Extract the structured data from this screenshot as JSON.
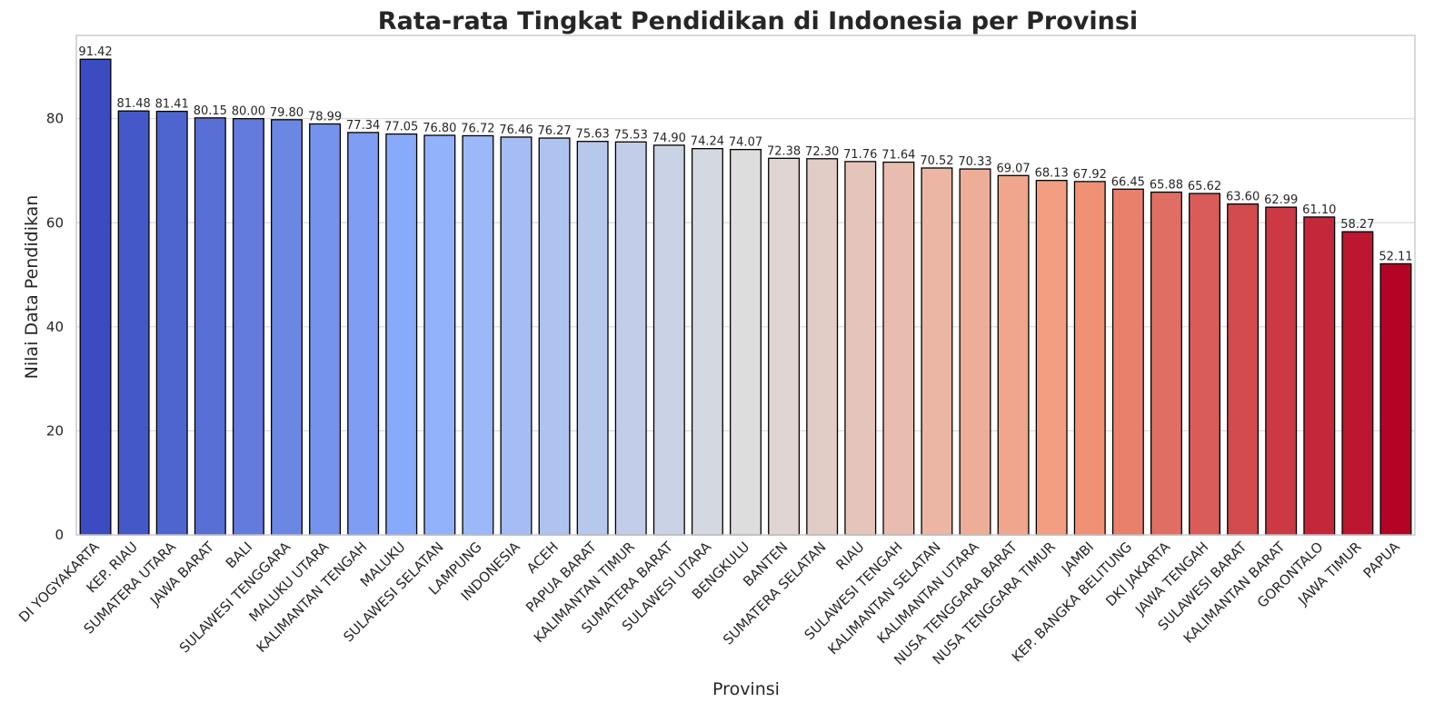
{
  "chart_data": {
    "type": "bar",
    "title": "Rata-rata Tingkat Pendidikan di Indonesia per Provinsi",
    "xlabel": "Provinsi",
    "ylabel": "Nilai Data Pendidikan",
    "ylim": [
      0,
      96
    ],
    "yticks": [
      0,
      20,
      40,
      60,
      80
    ],
    "grid": "horizontal",
    "palette": "coolwarm",
    "bar_edge_color": "#000000",
    "categories": [
      "DI YOGYAKARTA",
      "KEP. RIAU",
      "SUMATERA UTARA",
      "JAWA BARAT",
      "BALI",
      "SULAWESI TENGGARA",
      "MALUKU UTARA",
      "KALIMANTAN TENGAH",
      "MALUKU",
      "SULAWESI SELATAN",
      "LAMPUNG",
      "INDONESIA",
      "ACEH",
      "PAPUA BARAT",
      "KALIMANTAN TIMUR",
      "SUMATERA BARAT",
      "SULAWESI UTARA",
      "BENGKULU",
      "BANTEN",
      "SUMATERA SELATAN",
      "RIAU",
      "SULAWESI TENGAH",
      "KALIMANTAN SELATAN",
      "KALIMANTAN UTARA",
      "NUSA TENGGARA BARAT",
      "NUSA TENGGARA TIMUR",
      "JAMBI",
      "KEP. BANGKA BELITUNG",
      "DKI JAKARTA",
      "JAWA TENGAH",
      "SULAWESI BARAT",
      "KALIMANTAN BARAT",
      "GORONTALO",
      "JAWA TIMUR",
      "PAPUA"
    ],
    "values": [
      91.42,
      81.48,
      81.41,
      80.15,
      80.0,
      79.8,
      78.99,
      77.34,
      77.05,
      76.8,
      76.72,
      76.46,
      76.27,
      75.63,
      75.53,
      74.9,
      74.24,
      74.07,
      72.38,
      72.3,
      71.76,
      71.64,
      70.52,
      70.33,
      69.07,
      68.13,
      67.92,
      66.45,
      65.88,
      65.62,
      63.6,
      62.99,
      61.1,
      58.27,
      52.11
    ],
    "value_labels": [
      "91.42",
      "81.48",
      "81.41",
      "80.15",
      "80.00",
      "79.80",
      "78.99",
      "77.34",
      "77.05",
      "76.80",
      "76.72",
      "76.46",
      "76.27",
      "75.63",
      "75.53",
      "74.90",
      "74.24",
      "74.07",
      "72.38",
      "72.30",
      "71.76",
      "71.64",
      "70.52",
      "70.33",
      "69.07",
      "68.13",
      "67.92",
      "66.45",
      "65.88",
      "65.62",
      "63.60",
      "62.99",
      "61.10",
      "58.27",
      "52.11"
    ]
  }
}
